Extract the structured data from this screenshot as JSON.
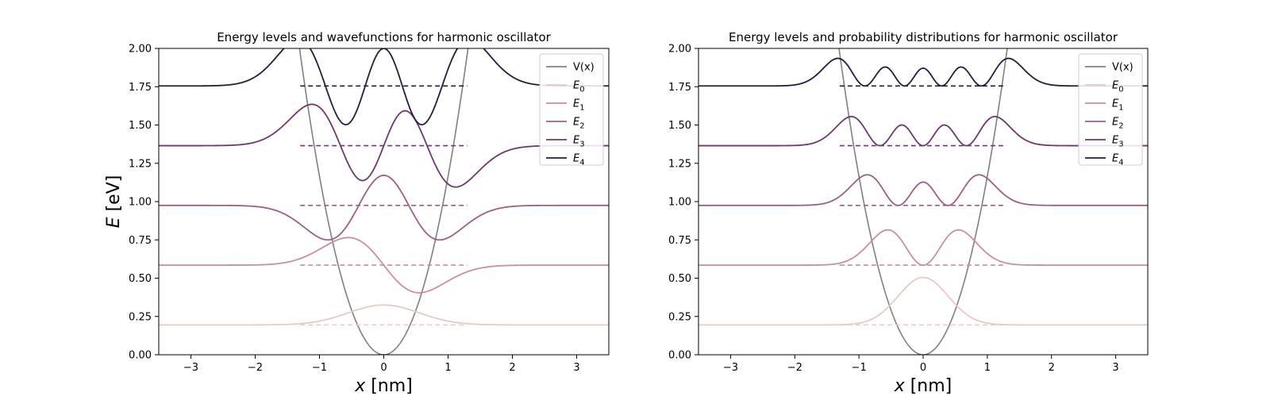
{
  "chart_data": [
    {
      "type": "line",
      "title": "Energy levels and wavefunctions for harmonic oscillator",
      "xlabel": "x [nm]",
      "ylabel": "E [eV]",
      "xlim": [
        -3.5,
        3.5
      ],
      "ylim": [
        0,
        2.0
      ],
      "xticks": [
        -3,
        -2,
        -1,
        0,
        1,
        2,
        3
      ],
      "xtick_labels": [
        "−3",
        "−2",
        "−1",
        "0",
        "1",
        "2",
        "3"
      ],
      "yticks": [
        0,
        0.25,
        0.5,
        0.75,
        1.0,
        1.25,
        1.5,
        1.75,
        2.0
      ],
      "ytick_labels": [
        "0.00",
        "0.25",
        "0.50",
        "0.75",
        "1.00",
        "1.25",
        "1.50",
        "1.75",
        "2.00"
      ],
      "grid": false,
      "legend": "top-right",
      "potential": {
        "name": "V(x)",
        "formula": "1.165 * x^2",
        "color": "#808080"
      },
      "series": [
        {
          "name": "E0",
          "energy": 0.195,
          "color": "#e7c9c6",
          "amplitude": 0.26,
          "sign": 1
        },
        {
          "name": "E1",
          "energy": 0.585,
          "color": "#c98f9f",
          "amplitude": 0.36,
          "sign": -1
        },
        {
          "name": "E2",
          "energy": 0.975,
          "color": "#9b5f85",
          "amplitude": 0.45,
          "sign": -1
        },
        {
          "name": "E3",
          "energy": 1.365,
          "color": "#6a3a6b",
          "amplitude": 0.54,
          "sign": -1
        },
        {
          "name": "E4",
          "energy": 1.755,
          "color": "#221d3d",
          "amplitude": 0.61,
          "sign": 1
        }
      ],
      "level_line_x": [
        -1.3,
        1.3
      ],
      "mode": "wavefunction"
    },
    {
      "type": "line",
      "title": "Energy levels and probability distributions for harmonic oscillator",
      "xlabel": "x [nm]",
      "ylabel": "",
      "xlim": [
        -3.5,
        3.5
      ],
      "ylim": [
        0,
        2.0
      ],
      "xticks": [
        -3,
        -2,
        -1,
        0,
        1,
        2,
        3
      ],
      "xtick_labels": [
        "−3",
        "−2",
        "−1",
        "0",
        "1",
        "2",
        "3"
      ],
      "yticks": [
        0,
        0.25,
        0.5,
        0.75,
        1.0,
        1.25,
        1.5,
        1.75,
        2.0
      ],
      "ytick_labels": [
        "0.00",
        "0.25",
        "0.50",
        "0.75",
        "1.00",
        "1.25",
        "1.50",
        "1.75",
        "2.00"
      ],
      "grid": false,
      "legend": "top-right",
      "potential": {
        "name": "V(x)",
        "formula": "1.165 * x^2",
        "color": "#808080"
      },
      "series": [
        {
          "name": "E0",
          "energy": 0.195,
          "color": "#e7c9c6",
          "peak": 0.31
        },
        {
          "name": "E1",
          "energy": 0.585,
          "color": "#c98f9f",
          "peak": 0.23
        },
        {
          "name": "E2",
          "energy": 0.975,
          "color": "#9b5f85",
          "peak": 0.2
        },
        {
          "name": "E3",
          "energy": 1.365,
          "color": "#6a3a6b",
          "peak": 0.19
        },
        {
          "name": "E4",
          "energy": 1.755,
          "color": "#221d3d",
          "peak": 0.18
        }
      ],
      "level_line_x": [
        -1.3,
        1.3
      ],
      "mode": "probability"
    }
  ]
}
